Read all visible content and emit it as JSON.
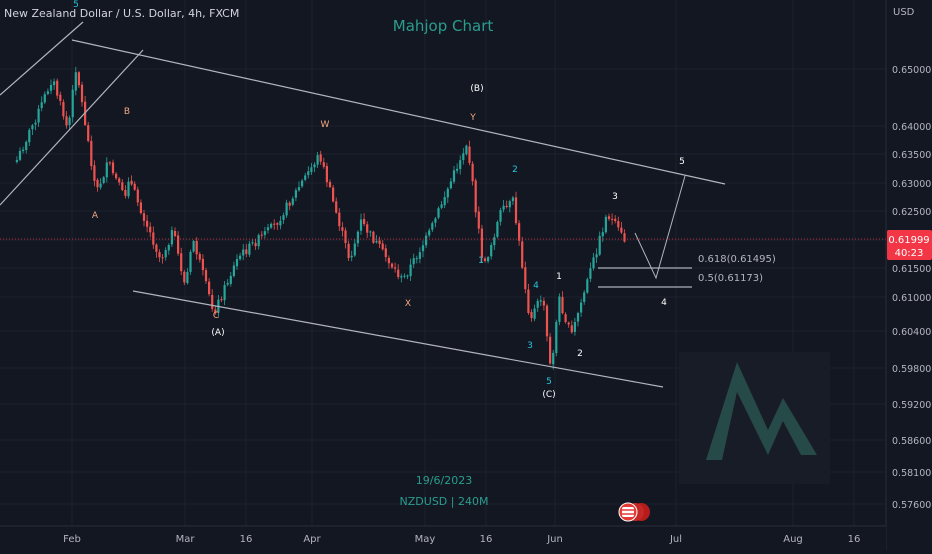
{
  "header": {
    "symbol_title": "New Zealand Dollar / U.S. Dollar, 4h, FXCM",
    "watermark_title": "Mahjop Chart",
    "date_label": "19/6/2023",
    "symbol_label": "NZDUSD | 240M"
  },
  "axis": {
    "currency": "USD",
    "price_ticks": [
      "0.65000",
      "0.64000",
      "0.63500",
      "0.63000",
      "0.62500",
      "0.62000",
      "0.61500",
      "0.61000",
      "0.60400",
      "0.59800",
      "0.59200",
      "0.58600",
      "0.58100",
      "0.57600"
    ],
    "current_price": "0.61999",
    "countdown": "40:23",
    "time_ticks": [
      "Feb",
      "Mar",
      "16",
      "Apr",
      "May",
      "16",
      "Jun",
      "Jul",
      "Aug",
      "16"
    ]
  },
  "fib": {
    "level_618": "0.618(0.61495)",
    "level_5": "0.5(0.61173)"
  },
  "waves": {
    "top_5": "5",
    "a_small": "A",
    "b_small": "B",
    "c_small": "C",
    "A_big": "(A)",
    "w": "W",
    "x": "X",
    "y": "Y",
    "B_big": "(B)",
    "i1": "1",
    "i2": "2",
    "i3": "3",
    "i4": "4",
    "i5": "5",
    "C_big": "(C)",
    "n1": "1",
    "n2": "2",
    "n3": "3",
    "n4": "4",
    "n5": "5"
  },
  "colors": {
    "background": "#131722",
    "up_candle": "#26a69a",
    "down_candle": "#ef5350",
    "channel_line": "#b2b5be",
    "wave_cyan": "#26c6da",
    "wave_orange": "#f4a582",
    "wave_white": "#ffffff",
    "price_tag": "#f23645",
    "watermark_teal": "#2a9d8f"
  },
  "chart_data": {
    "type": "candlestick",
    "symbol": "NZDUSD",
    "timeframe": "4h",
    "current_price": 0.61999,
    "x_ticks": [
      "Feb",
      "Mar",
      "16",
      "Apr",
      "May",
      "16",
      "Jun",
      "Jul",
      "Aug",
      "16"
    ],
    "y_ticks": [
      0.65,
      0.64,
      0.635,
      0.63,
      0.625,
      0.62,
      0.615,
      0.61,
      0.604,
      0.598,
      0.592,
      0.586,
      0.581,
      0.576
    ],
    "ylim": [
      0.574,
      0.6575
    ],
    "fib_levels": [
      {
        "ratio": 0.618,
        "price": 0.61495
      },
      {
        "ratio": 0.5,
        "price": 0.61173
      }
    ],
    "price_path": [
      [
        0.6345,
        "Jan 18"
      ],
      [
        0.6435,
        "Jan 24"
      ],
      [
        0.6485,
        "Jan 27"
      ],
      [
        0.6395,
        "Jan 31"
      ],
      [
        0.6505,
        "Feb 2"
      ],
      [
        0.629,
        "Feb 7"
      ],
      [
        0.634,
        "Feb 10"
      ],
      [
        0.628,
        "Feb 14"
      ],
      [
        0.6315,
        "Feb 15"
      ],
      [
        0.6175,
        "Feb 23"
      ],
      [
        0.6225,
        "Feb 26"
      ],
      [
        0.613,
        "Mar 1"
      ],
      [
        0.621,
        "Mar 3"
      ],
      [
        0.6085,
        "Mar 8"
      ],
      [
        0.618,
        "Mar 14"
      ],
      [
        0.6235,
        "Mar 23"
      ],
      [
        0.6355,
        "Apr 3"
      ],
      [
        0.6175,
        "Apr 11"
      ],
      [
        0.624,
        "Apr 14"
      ],
      [
        0.614,
        "Apr 25"
      ],
      [
        0.622,
        "May 2"
      ],
      [
        0.6375,
        "May 11"
      ],
      [
        0.616,
        "May 15"
      ],
      [
        0.6255,
        "May 19"
      ],
      [
        0.6275,
        "May 22"
      ],
      [
        0.6075,
        "May 26"
      ],
      [
        0.6115,
        "May 29"
      ],
      [
        0.5985,
        "May 31"
      ],
      [
        0.611,
        "Jun 2"
      ],
      [
        0.6045,
        "Jun 5"
      ],
      [
        0.6255,
        "Jun 14"
      ],
      [
        0.62,
        "Jun 19"
      ]
    ],
    "projection": [
      [
        0.62,
        "Jun 19"
      ],
      [
        0.615,
        "Jun 23"
      ],
      [
        0.6305,
        "Jul 1"
      ]
    ]
  }
}
